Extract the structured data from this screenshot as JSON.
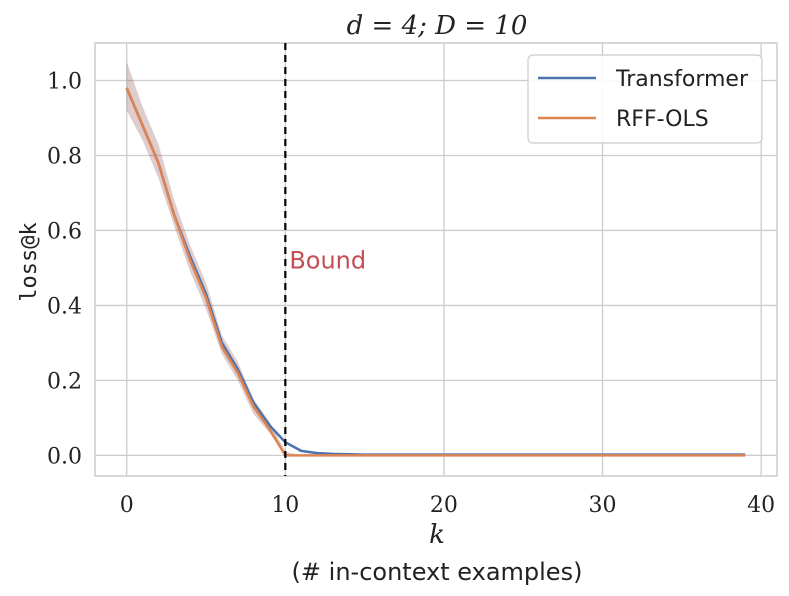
{
  "chart_data": {
    "type": "line",
    "title": "d = 4; D = 10",
    "xlabel": "k",
    "xlabel_sub": "(# in-context examples)",
    "ylabel": "loss@k",
    "xlim": [
      -2,
      41
    ],
    "ylim": [
      -0.055,
      1.1
    ],
    "xticks": [
      0,
      10,
      20,
      30,
      40
    ],
    "yticks": [
      0.0,
      0.2,
      0.4,
      0.6,
      0.8,
      1.0
    ],
    "xtick_labels": [
      "0",
      "10",
      "20",
      "30",
      "40"
    ],
    "ytick_labels": [
      "0.0",
      "0.2",
      "0.4",
      "0.6",
      "0.8",
      "1.0"
    ],
    "grid": true,
    "legend_position": "top-right",
    "annotation": {
      "text": "Bound",
      "x": 10,
      "y": 0.52,
      "color": "#c44e52"
    },
    "vline": {
      "x": 10,
      "style": "dashed",
      "color": "#000000"
    },
    "x": [
      0,
      1,
      2,
      3,
      4,
      5,
      6,
      7,
      8,
      9,
      10,
      11,
      12,
      13,
      14,
      15,
      16,
      17,
      18,
      19,
      20,
      21,
      22,
      23,
      24,
      25,
      26,
      27,
      28,
      29,
      30,
      31,
      32,
      33,
      34,
      35,
      36,
      37,
      38,
      39
    ],
    "series": [
      {
        "name": "Transformer",
        "color": "#4c72b0",
        "values": [
          0.98,
          0.88,
          0.78,
          0.64,
          0.53,
          0.43,
          0.3,
          0.23,
          0.14,
          0.08,
          0.035,
          0.012,
          0.006,
          0.004,
          0.003,
          0.002,
          0.002,
          0.002,
          0.002,
          0.002,
          0.002,
          0.002,
          0.002,
          0.002,
          0.002,
          0.002,
          0.002,
          0.002,
          0.002,
          0.002,
          0.002,
          0.002,
          0.002,
          0.002,
          0.002,
          0.002,
          0.002,
          0.002,
          0.002,
          0.002
        ]
      },
      {
        "name": "RFF-OLS",
        "color": "#dd8452",
        "values": [
          0.98,
          0.88,
          0.78,
          0.64,
          0.52,
          0.42,
          0.29,
          0.22,
          0.13,
          0.07,
          0.0,
          0.0,
          0.0,
          0.0,
          0.0,
          0.0,
          0.0,
          0.0,
          0.0,
          0.0,
          0.0,
          0.0,
          0.0,
          0.0,
          0.0,
          0.0,
          0.0,
          0.0,
          0.0,
          0.0,
          0.0,
          0.0,
          0.0,
          0.0,
          0.0,
          0.0,
          0.0,
          0.0,
          0.0,
          0.0
        ],
        "band_lower": [
          0.92,
          0.84,
          0.74,
          0.61,
          0.49,
          0.39,
          0.27,
          0.2,
          0.11,
          0.06,
          0.0,
          0.0,
          0.0,
          0.0,
          0.0,
          0.0,
          0.0,
          0.0,
          0.0,
          0.0,
          0.0,
          0.0,
          0.0,
          0.0,
          0.0,
          0.0,
          0.0,
          0.0,
          0.0,
          0.0,
          0.0,
          0.0,
          0.0,
          0.0,
          0.0,
          0.0,
          0.0,
          0.0,
          0.0,
          0.0
        ],
        "band_upper": [
          1.05,
          0.93,
          0.83,
          0.68,
          0.56,
          0.46,
          0.32,
          0.25,
          0.15,
          0.09,
          0.01,
          0.0,
          0.0,
          0.0,
          0.0,
          0.0,
          0.0,
          0.0,
          0.0,
          0.0,
          0.0,
          0.0,
          0.0,
          0.0,
          0.0,
          0.0,
          0.0,
          0.0,
          0.0,
          0.0,
          0.0,
          0.0,
          0.0,
          0.0,
          0.0,
          0.0,
          0.0,
          0.0,
          0.0,
          0.0
        ]
      }
    ]
  }
}
